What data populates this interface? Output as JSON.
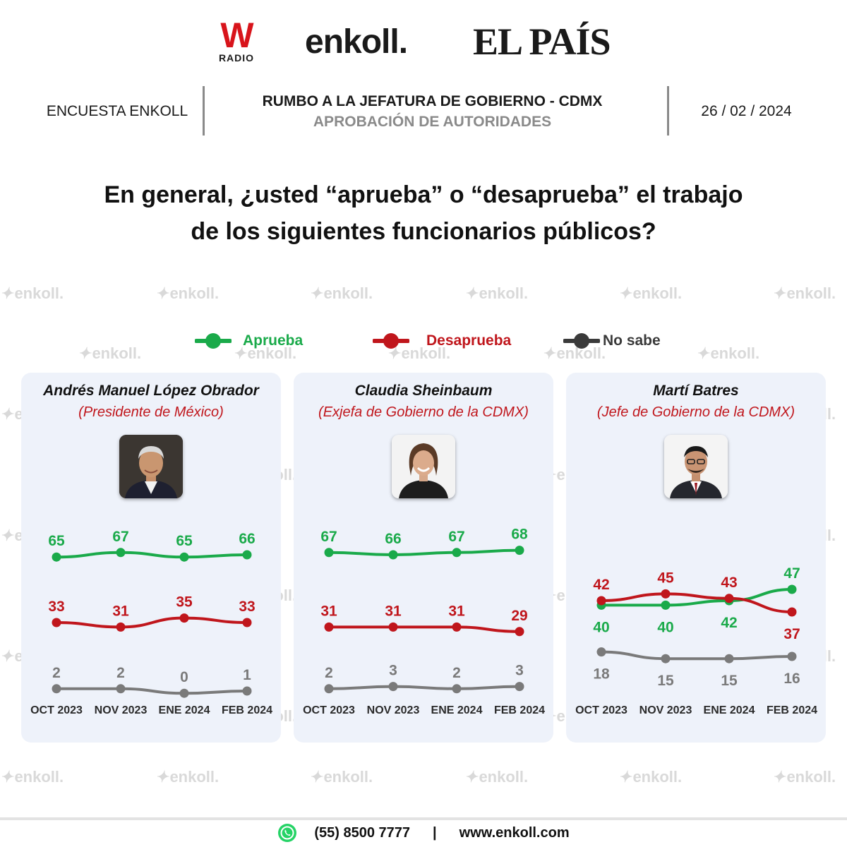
{
  "logos": {
    "wradio_letter": "W",
    "wradio_sub": "RADIO",
    "enkoll": "enkoll.",
    "elpais": "EL PAÍS"
  },
  "header": {
    "left": "ENCUESTA ENKOLL",
    "title": "RUMBO A LA JEFATURA DE GOBIERNO - CDMX",
    "subtitle": "APROBACIÓN DE AUTORIDADES",
    "date": "26 / 02 / 2024"
  },
  "question": {
    "line1": "En general, ¿usted “aprueba” o “desaprueba” el trabajo",
    "line2": "de los siguientes funcionarios públicos?"
  },
  "watermark": "enkoll.",
  "colors": {
    "aprueba": "#1aaa4a",
    "desaprueba": "#c0161c",
    "no_sabe": "#7a7a7a",
    "panel_bg": "#eef2fa"
  },
  "legend": [
    {
      "label": "Aprueba",
      "color": "#1aaa4a"
    },
    {
      "label": "Desaprueba",
      "color": "#c0161c"
    },
    {
      "label": "No sabe",
      "color": "#3a3a3a"
    }
  ],
  "panels": [
    {
      "name": "Andrés Manuel López Obrador",
      "role": "(Presidente de México)",
      "avatar_icon": "man-portrait-icon"
    },
    {
      "name": "Claudia Sheinbaum",
      "role": "(Exjefa de Gobierno de la CDMX)",
      "avatar_icon": "woman-portrait-icon"
    },
    {
      "name": "Martí Batres",
      "role": "(Jefe de Gobierno de la CDMX)",
      "avatar_icon": "man-portrait-icon"
    }
  ],
  "chart_data": [
    {
      "type": "line",
      "x": [
        "OCT 2023",
        "NOV 2023",
        "ENE 2024",
        "FEB 2024"
      ],
      "series": [
        {
          "name": "Aprueba",
          "values": [
            65,
            67,
            65,
            66
          ]
        },
        {
          "name": "Desaprueba",
          "values": [
            33,
            31,
            35,
            33
          ]
        },
        {
          "name": "No sabe",
          "values": [
            2,
            2,
            0,
            1
          ]
        }
      ]
    },
    {
      "type": "line",
      "x": [
        "OCT 2023",
        "NOV 2023",
        "ENE 2024",
        "FEB 2024"
      ],
      "series": [
        {
          "name": "Aprueba",
          "values": [
            67,
            66,
            67,
            68
          ]
        },
        {
          "name": "Desaprueba",
          "values": [
            31,
            31,
            31,
            29
          ]
        },
        {
          "name": "No sabe",
          "values": [
            2,
            3,
            2,
            3
          ]
        }
      ]
    },
    {
      "type": "line",
      "x": [
        "OCT 2023",
        "NOV 2023",
        "ENE 2024",
        "FEB 2024"
      ],
      "series": [
        {
          "name": "Aprueba",
          "values": [
            40,
            40,
            42,
            47
          ]
        },
        {
          "name": "Desaprueba",
          "values": [
            42,
            45,
            43,
            37
          ]
        },
        {
          "name": "No sabe",
          "values": [
            18,
            15,
            15,
            16
          ]
        }
      ]
    }
  ],
  "footer": {
    "phone": "(55) 8500 7777",
    "separator": "|",
    "website": "www.enkoll.com"
  }
}
